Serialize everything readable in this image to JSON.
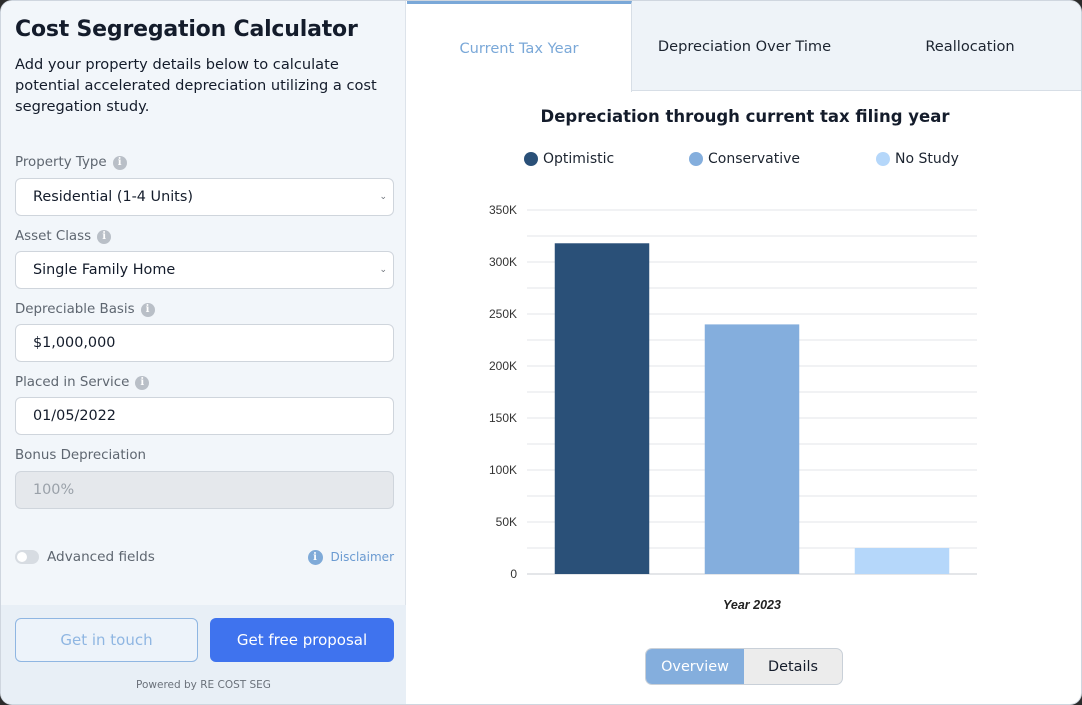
{
  "calculator": {
    "title": "Cost Segregation Calculator",
    "subtitle": "Add your property details below to calculate potential accelerated depreciation utilizing a cost segregation study.",
    "fields": [
      {
        "label": "Property Type",
        "value": "Residential (1-4 Units)",
        "info": true,
        "kind": "select"
      },
      {
        "label": "Asset Class",
        "value": "Single Family Home",
        "info": true,
        "kind": "select"
      },
      {
        "label": "Depreciable Basis",
        "value": "$1,000,000",
        "info": true,
        "kind": "input"
      },
      {
        "label": "Placed in Service",
        "value": "01/05/2022",
        "info": true,
        "kind": "input"
      },
      {
        "label": "Bonus Depreciation",
        "value": "100%",
        "info": false,
        "kind": "disabled"
      }
    ],
    "advanced_label": "Advanced fields",
    "advanced_on": false,
    "disclaimer_label": "Disclaimer",
    "get_in_touch_label": "Get in touch",
    "proposal_label": "Get free proposal",
    "powered_by": "Powered by RE COST SEG"
  },
  "tabs": [
    {
      "label": "Current Tax Year",
      "active": true
    },
    {
      "label": "Depreciation Over Time",
      "active": false
    },
    {
      "label": "Reallocation",
      "active": false
    }
  ],
  "view_toggle": {
    "overview_label": "Overview",
    "details_label": "Details",
    "selected": "Overview"
  },
  "colors": {
    "optimistic": "#2a5078",
    "conservative": "#84aedd",
    "no_study": "#b5d7fa",
    "accent": "#3f73ee"
  },
  "chart_data": {
    "type": "bar",
    "title": "Depreciation through current tax filing year",
    "categories": [
      "Year 2023"
    ],
    "xlabel": "",
    "ylabel": "",
    "ylim": [
      0,
      350000
    ],
    "yticks": [
      0,
      50000,
      100000,
      150000,
      200000,
      250000,
      300000,
      350000
    ],
    "ytick_labels": [
      "0",
      "50K",
      "100K",
      "150K",
      "200K",
      "250K",
      "300K",
      "350K"
    ],
    "grid": true,
    "legend_position": "top",
    "series": [
      {
        "name": "Optimistic",
        "values": [
          318000
        ]
      },
      {
        "name": "Conservative",
        "values": [
          240000
        ]
      },
      {
        "name": "No Study",
        "values": [
          25000
        ]
      }
    ]
  }
}
